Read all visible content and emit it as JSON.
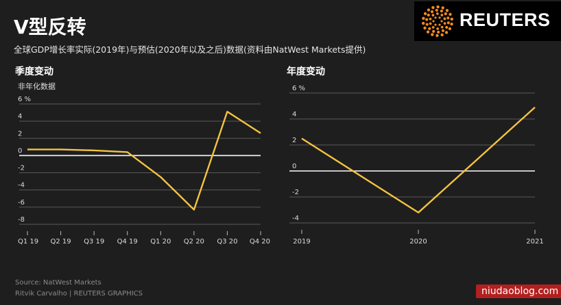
{
  "header": {
    "title": "V型反转",
    "subtitle": "全球GDP增长率实际(2019年)与预估(2020年以及之后)数据(资料由NatWest Markets提供)",
    "logo_text": "REUTERS"
  },
  "colors": {
    "line": "#f5c342",
    "background": "#1e1e1e",
    "zero_line": "#ffffff",
    "grid": "#5a5a5a"
  },
  "chart_data": [
    {
      "type": "line",
      "title": "季度变动",
      "unit_note": "非年化数据",
      "categories": [
        "Q1 19",
        "Q2 19",
        "Q3 19",
        "Q4 19",
        "Q1 20",
        "Q2 20",
        "Q3 20",
        "Q4 20"
      ],
      "series": [
        {
          "values": [
            0.7,
            0.7,
            0.6,
            0.4,
            -2.5,
            -6.3,
            5.1,
            2.6
          ]
        }
      ],
      "y_ticks": [
        "6 %",
        "4",
        "2",
        "0",
        "-2",
        "-4",
        "-6",
        "-8"
      ],
      "ylim": [
        -8,
        6
      ],
      "grid": true
    },
    {
      "type": "line",
      "title": "年度变动",
      "categories": [
        "2019",
        "2020",
        "2021"
      ],
      "series": [
        {
          "values": [
            2.5,
            -3.2,
            4.9
          ]
        }
      ],
      "y_ticks": [
        "6 %",
        "4",
        "2",
        "0",
        "-2",
        "-4"
      ],
      "ylim": [
        -4,
        6
      ],
      "grid": true
    }
  ],
  "footer": {
    "source": "Source: NatWest Markets",
    "credit": "Ritvik Carvalho    | REUTERS GRAPHICS"
  },
  "watermark": "niudaoblog.com"
}
